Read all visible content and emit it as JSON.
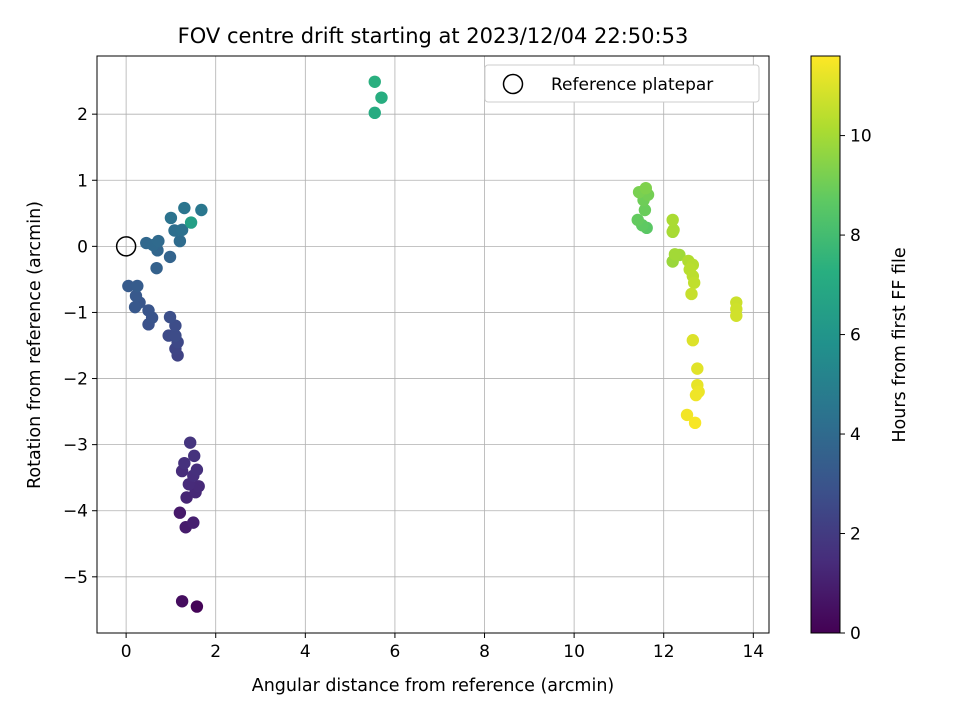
{
  "chart_data": {
    "type": "scatter",
    "title": "FOV centre drift starting at 2023/12/04 22:50:53",
    "xlabel": "Angular distance from reference (arcmin)",
    "ylabel": "Rotation from reference (arcmin)",
    "xlim": [
      -0.65,
      14.35
    ],
    "ylim": [
      -5.85,
      2.88
    ],
    "xticks": [
      0,
      2,
      4,
      6,
      8,
      10,
      12,
      14
    ],
    "yticks": [
      -5,
      -4,
      -3,
      -2,
      -1,
      0,
      1,
      2
    ],
    "grid": true,
    "legend": {
      "placement": "top-right",
      "entries": [
        "Reference platepar"
      ]
    },
    "reference": {
      "x": 0,
      "y": 0,
      "label": "Reference platepar"
    },
    "colorbar": {
      "label": "Hours from first FF file",
      "colormap": "viridis",
      "range": [
        0,
        11.6
      ],
      "ticks": [
        0,
        2,
        4,
        6,
        8,
        10
      ]
    },
    "series": [
      {
        "points": [
          {
            "x": 1.58,
            "y": -5.45,
            "h": 0.1
          },
          {
            "x": 1.25,
            "y": -5.37,
            "h": 0.4
          },
          {
            "x": 1.2,
            "y": -4.03,
            "h": 0.8
          },
          {
            "x": 1.33,
            "y": -4.25,
            "h": 0.9
          },
          {
            "x": 1.5,
            "y": -4.18,
            "h": 1.0
          },
          {
            "x": 1.35,
            "y": -3.8,
            "h": 1.2
          },
          {
            "x": 1.55,
            "y": -3.72,
            "h": 1.3
          },
          {
            "x": 1.62,
            "y": -3.63,
            "h": 1.35
          },
          {
            "x": 1.4,
            "y": -3.6,
            "h": 1.4
          },
          {
            "x": 1.25,
            "y": -3.4,
            "h": 1.45
          },
          {
            "x": 1.5,
            "y": -3.47,
            "h": 1.5
          },
          {
            "x": 1.58,
            "y": -3.38,
            "h": 1.55
          },
          {
            "x": 1.3,
            "y": -3.28,
            "h": 1.6
          },
          {
            "x": 1.52,
            "y": -3.17,
            "h": 1.65
          },
          {
            "x": 1.43,
            "y": -2.97,
            "h": 1.75
          },
          {
            "x": 1.15,
            "y": -1.65,
            "h": 2.3
          },
          {
            "x": 1.1,
            "y": -1.55,
            "h": 2.4
          },
          {
            "x": 1.15,
            "y": -1.45,
            "h": 2.5
          },
          {
            "x": 0.95,
            "y": -1.35,
            "h": 2.6
          },
          {
            "x": 1.1,
            "y": -1.35,
            "h": 2.65
          },
          {
            "x": 1.1,
            "y": -1.2,
            "h": 2.7
          },
          {
            "x": 0.98,
            "y": -1.07,
            "h": 2.8
          },
          {
            "x": 0.5,
            "y": -1.18,
            "h": 2.9
          },
          {
            "x": 0.58,
            "y": -1.08,
            "h": 3.0
          },
          {
            "x": 0.5,
            "y": -0.97,
            "h": 3.05
          },
          {
            "x": 0.3,
            "y": -0.85,
            "h": 3.1
          },
          {
            "x": 0.2,
            "y": -0.92,
            "h": 3.15
          },
          {
            "x": 0.22,
            "y": -0.75,
            "h": 3.2
          },
          {
            "x": 0.05,
            "y": -0.6,
            "h": 3.3
          },
          {
            "x": 0.25,
            "y": -0.6,
            "h": 3.35
          },
          {
            "x": 0.68,
            "y": -0.33,
            "h": 3.6
          },
          {
            "x": 0.98,
            "y": -0.16,
            "h": 3.7
          },
          {
            "x": 0.7,
            "y": -0.06,
            "h": 3.8
          },
          {
            "x": 0.45,
            "y": 0.05,
            "h": 3.9
          },
          {
            "x": 0.6,
            "y": 0.02,
            "h": 3.95
          },
          {
            "x": 0.72,
            "y": 0.08,
            "h": 4.0
          },
          {
            "x": 1.2,
            "y": 0.08,
            "h": 4.1
          },
          {
            "x": 1.08,
            "y": 0.24,
            "h": 4.2
          },
          {
            "x": 1.25,
            "y": 0.25,
            "h": 4.3
          },
          {
            "x": 1.0,
            "y": 0.43,
            "h": 4.4
          },
          {
            "x": 1.3,
            "y": 0.58,
            "h": 4.5
          },
          {
            "x": 1.68,
            "y": 0.55,
            "h": 4.6
          },
          {
            "x": 1.45,
            "y": 0.36,
            "h": 6.5
          },
          {
            "x": 5.55,
            "y": 2.02,
            "h": 7.1
          },
          {
            "x": 5.7,
            "y": 2.25,
            "h": 7.2
          },
          {
            "x": 5.55,
            "y": 2.49,
            "h": 7.3
          },
          {
            "x": 11.62,
            "y": 0.28,
            "h": 8.6
          },
          {
            "x": 11.52,
            "y": 0.32,
            "h": 8.7
          },
          {
            "x": 11.42,
            "y": 0.4,
            "h": 8.8
          },
          {
            "x": 11.58,
            "y": 0.55,
            "h": 8.9
          },
          {
            "x": 11.55,
            "y": 0.7,
            "h": 9.0
          },
          {
            "x": 11.65,
            "y": 0.78,
            "h": 9.1
          },
          {
            "x": 11.45,
            "y": 0.82,
            "h": 9.2
          },
          {
            "x": 11.6,
            "y": 0.88,
            "h": 9.3
          },
          {
            "x": 12.2,
            "y": -0.23,
            "h": 9.8
          },
          {
            "x": 12.35,
            "y": -0.13,
            "h": 9.9
          },
          {
            "x": 12.25,
            "y": -0.12,
            "h": 9.95
          },
          {
            "x": 12.2,
            "y": 0.22,
            "h": 10.0
          },
          {
            "x": 12.22,
            "y": 0.25,
            "h": 10.05
          },
          {
            "x": 12.2,
            "y": 0.4,
            "h": 10.1
          },
          {
            "x": 12.55,
            "y": -0.22,
            "h": 10.2
          },
          {
            "x": 12.65,
            "y": -0.28,
            "h": 10.3
          },
          {
            "x": 12.58,
            "y": -0.35,
            "h": 10.35
          },
          {
            "x": 12.65,
            "y": -0.45,
            "h": 10.4
          },
          {
            "x": 12.68,
            "y": -0.55,
            "h": 10.5
          },
          {
            "x": 12.62,
            "y": -0.72,
            "h": 10.6
          },
          {
            "x": 13.62,
            "y": -0.85,
            "h": 10.7
          },
          {
            "x": 13.62,
            "y": -0.95,
            "h": 10.75
          },
          {
            "x": 13.62,
            "y": -1.05,
            "h": 10.8
          },
          {
            "x": 12.65,
            "y": -1.42,
            "h": 11.0
          },
          {
            "x": 12.75,
            "y": -1.85,
            "h": 11.1
          },
          {
            "x": 12.75,
            "y": -2.1,
            "h": 11.2
          },
          {
            "x": 12.78,
            "y": -2.2,
            "h": 11.3
          },
          {
            "x": 12.72,
            "y": -2.25,
            "h": 11.35
          },
          {
            "x": 12.52,
            "y": -2.55,
            "h": 11.4
          },
          {
            "x": 12.7,
            "y": -2.67,
            "h": 11.5
          }
        ]
      }
    ]
  }
}
